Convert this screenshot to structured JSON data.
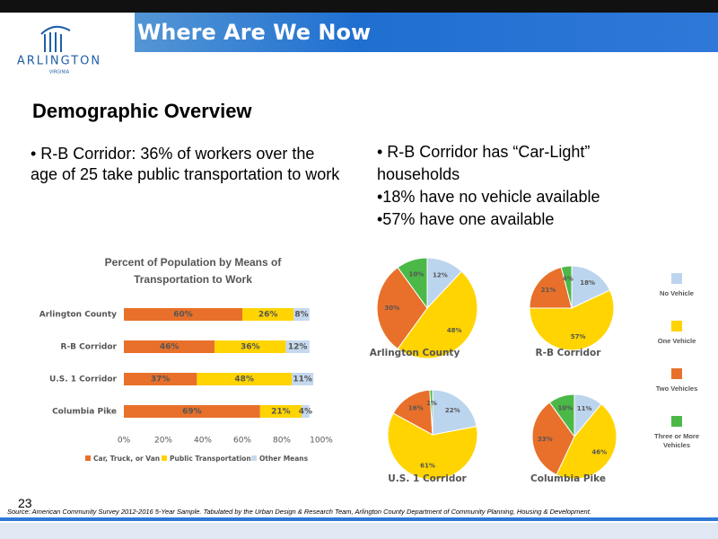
{
  "slide": {
    "header": "Where Are We Now",
    "logo": {
      "name": "ARLINGTON",
      "state": "VIRGINIA"
    },
    "title": "Demographic Overview",
    "left_bullet": "• R-B Corridor: 36% of workers over the age of 25 take public transportation to work",
    "right_bullets": [
      "• R-B Corridor has “Car-Light” households",
      "•18% have no vehicle available",
      "•57% have one available"
    ],
    "page_number": "23",
    "source": "Source:  American Community Survey 2012-2016 5-Year Sample. Tabulated by the Urban Design & Research Team, Arlington County Department of Community Planning, Housing & Development."
  },
  "chart_data": [
    {
      "type": "bar",
      "orientation": "horizontal",
      "stacked": true,
      "title": "Percent of Population by Means of Transportation to Work",
      "categories": [
        "Arlington County",
        "R-B Corridor",
        "U.S. 1 Corridor",
        "Columbia Pike"
      ],
      "series": [
        {
          "name": "Car, Truck, or Van",
          "color": "#e8702a",
          "values": [
            60,
            46,
            37,
            69
          ],
          "value_labels": [
            "60%",
            "46%",
            "37%",
            "69%"
          ]
        },
        {
          "name": "Public Transportation",
          "color": "#ffd400",
          "values": [
            26,
            36,
            48,
            21
          ],
          "value_labels": [
            "26%",
            "36%",
            "48%",
            "21%"
          ]
        },
        {
          "name": "Other Means",
          "color": "#c5d9ee",
          "values": [
            8,
            12,
            11,
            4
          ],
          "value_labels": [
            "8%",
            "12%",
            "11%",
            "4%"
          ]
        }
      ],
      "xlim": [
        0,
        100
      ],
      "xticks": [
        {
          "value": 0,
          "label": "0%"
        },
        {
          "value": 20,
          "label": "20%"
        },
        {
          "value": 40,
          "label": "40%"
        },
        {
          "value": 60,
          "label": "60%"
        },
        {
          "value": 80,
          "label": "80%"
        },
        {
          "value": 100,
          "label": "100%"
        }
      ],
      "legend": "bottom",
      "grid": false
    },
    {
      "type": "pie",
      "categories": [
        "No Vehicle",
        "One Vehicle",
        "Two Vehicles",
        "Three or More Vehicles"
      ],
      "colors": [
        "#bcd5ee",
        "#ffd400",
        "#e8702a",
        "#4cb848"
      ],
      "legend": "right",
      "series": [
        {
          "name": "Arlington County",
          "values": [
            12,
            48,
            30,
            10
          ],
          "value_labels": [
            "12%",
            "48%",
            "30%",
            "10%"
          ]
        },
        {
          "name": "R-B Corridor",
          "values": [
            18,
            57,
            21,
            4
          ],
          "value_labels": [
            "18%",
            "57%",
            "21%",
            "4%"
          ]
        },
        {
          "name": "U.S. 1 Corridor",
          "values": [
            22,
            61,
            16,
            1
          ],
          "value_labels": [
            "22%",
            "61%",
            "16%",
            "1%"
          ]
        },
        {
          "name": "Columbia Pike",
          "values": [
            11,
            46,
            33,
            10
          ],
          "value_labels": [
            "11%",
            "46%",
            "33%",
            "10%"
          ]
        }
      ]
    }
  ]
}
